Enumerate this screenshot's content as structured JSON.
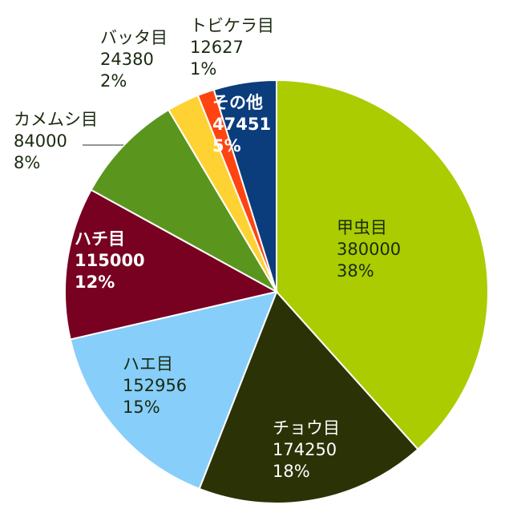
{
  "chart_data": {
    "type": "pie",
    "title": "",
    "legend": "none",
    "slices": [
      {
        "name": "甲虫目",
        "value": 380000,
        "percent": "38%",
        "color": "#aacc00",
        "label_color": "#1a2a10"
      },
      {
        "name": "チョウ目",
        "value": 174250,
        "percent": "18%",
        "color": "#2b3306",
        "label_color": "#ffffff"
      },
      {
        "name": "ハエ目",
        "value": 152956,
        "percent": "15%",
        "color": "#87cefa",
        "label_color": "#1a2a10"
      },
      {
        "name": "ハチ目",
        "value": 115000,
        "percent": "12%",
        "color": "#780021",
        "label_color": "#ffffff"
      },
      {
        "name": "カメムシ目",
        "value": 84000,
        "percent": "8%",
        "color": "#5a961e",
        "label_color": "#1a2a10"
      },
      {
        "name": "バッタ目",
        "value": 24380,
        "percent": "2%",
        "color": "#ffd234",
        "label_color": "#1a2a10"
      },
      {
        "name": "トビケラ目",
        "value": 12627,
        "percent": "1%",
        "color": "#ff4411",
        "label_color": "#1a2a10"
      },
      {
        "name": "その他",
        "value": 47451,
        "percent": "5%",
        "color": "#0b3d7c",
        "label_color": "#ffffff"
      }
    ]
  }
}
